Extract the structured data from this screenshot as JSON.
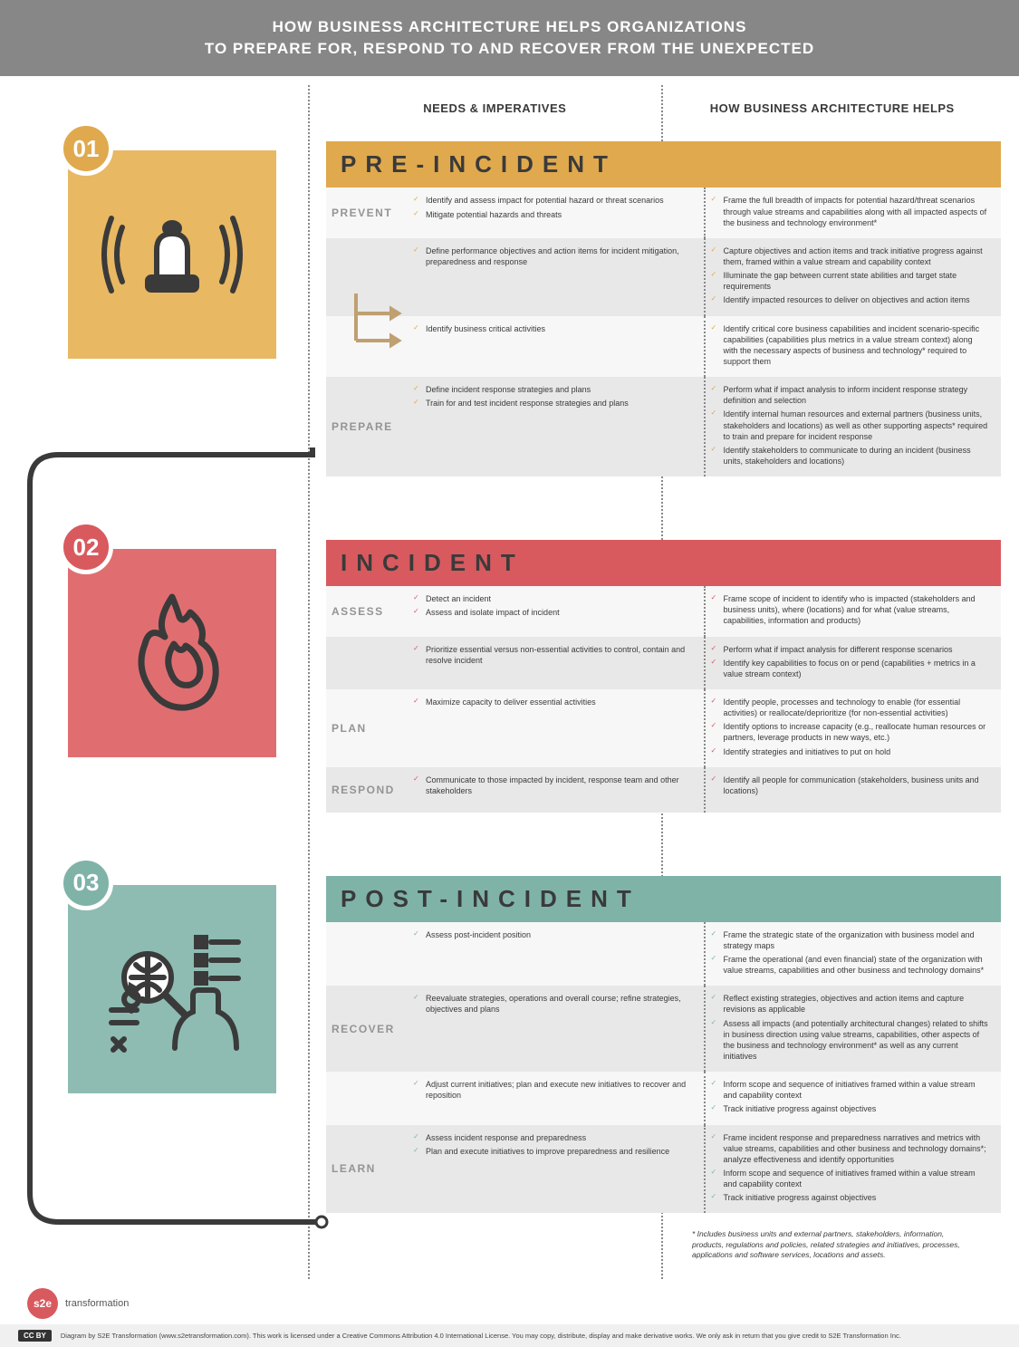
{
  "header": {
    "line1": "HOW BUSINESS ARCHITECTURE HELPS ORGANIZATIONS",
    "line2": "TO PREPARE FOR, RESPOND TO AND RECOVER FROM THE UNEXPECTED"
  },
  "columns": {
    "needs": "NEEDS & IMPERATIVES",
    "help": "HOW BUSINESS ARCHITECTURE HELPS"
  },
  "colors": {
    "header_bg": "#878787",
    "pre_accent": "#e0a94d",
    "pre_box": "#e8b863",
    "inc_accent": "#d85a5e",
    "inc_box": "#e06e71",
    "post_accent": "#7fb3a8",
    "post_box": "#8ebcb2",
    "row_alt": "#e8e8e8",
    "row_plain": "#f7f7f7",
    "phase_text": "#949494",
    "icon_stroke": "#3a3a3a"
  },
  "sections": [
    {
      "num": "01",
      "key": "pre",
      "title": "PRE-INCIDENT",
      "title_bg": "#e0a94d",
      "badge_bg": "#e0a94d",
      "box_bg": "#e8b863",
      "rows": [
        {
          "phase": "PREVENT",
          "alt": false,
          "needs": [
            "Identify and assess impact for potential hazard or threat scenarios",
            "Mitigate potential hazards and threats"
          ],
          "help": [
            "Frame the full breadth of impacts for potential hazard/threat scenarios through value streams and capabilities along with all impacted aspects of the business and technology environment*"
          ]
        },
        {
          "phase": "",
          "alt": true,
          "needs": [
            "Define performance objectives and action items for incident mitigation, preparedness and response"
          ],
          "help": [
            "Capture objectives and action items and track initiative progress against them, framed within a value stream and capability context",
            "Illuminate the gap between current state abilities and target state requirements",
            "Identify impacted resources to deliver on objectives and action items"
          ]
        },
        {
          "phase": "",
          "alt": false,
          "needs": [
            "Identify business critical activities"
          ],
          "help": [
            "Identify critical core business capabilities and incident scenario-specific capabilities (capabilities plus metrics in a value stream context) along with the necessary aspects of business and technology* required to support them"
          ]
        },
        {
          "phase": "PREPARE",
          "alt": true,
          "needs": [
            "Define incident response strategies and plans",
            "Train for and test incident response strategies and plans"
          ],
          "help": [
            "Perform what if impact analysis to inform incident response strategy definition and selection",
            "Identify internal human resources and external partners (business units, stakeholders and locations) as well as other supporting aspects* required to train and prepare for incident response",
            "Identify stakeholders to communicate to during an incident (business units, stakeholders and locations)"
          ]
        }
      ]
    },
    {
      "num": "02",
      "key": "inc",
      "title": "INCIDENT",
      "title_bg": "#d85a5e",
      "badge_bg": "#d85a5e",
      "box_bg": "#e06e71",
      "rows": [
        {
          "phase": "ASSESS",
          "alt": false,
          "needs": [
            "Detect an incident",
            "Assess and isolate impact of incident"
          ],
          "help": [
            "Frame scope of incident to identify who is impacted (stakeholders and business units), where (locations) and for what (value streams, capabilities, information and products)"
          ]
        },
        {
          "phase": "",
          "alt": true,
          "needs": [
            "Prioritize essential versus non-essential activities to control, contain and resolve incident"
          ],
          "help": [
            "Perform what if impact analysis for different response scenarios",
            "Identify key capabilities to focus on or pend (capabilities + metrics in a value stream context)"
          ]
        },
        {
          "phase": "PLAN",
          "alt": false,
          "needs": [
            "Maximize capacity to deliver essential activities"
          ],
          "help": [
            "Identify people, processes and technology to enable (for essential activities) or reallocate/deprioritize (for non-essential activities)",
            "Identify options to increase capacity (e.g., reallocate human resources or partners, leverage products in new ways, etc.)",
            "Identify strategies and initiatives to put on hold"
          ]
        },
        {
          "phase": "RESPOND",
          "alt": true,
          "needs": [
            "Communicate to those impacted by incident, response team and other stakeholders"
          ],
          "help": [
            "Identify all people for communication (stakeholders, business units and locations)"
          ]
        }
      ]
    },
    {
      "num": "03",
      "key": "post",
      "title": "POST-INCIDENT",
      "title_bg": "#7fb3a8",
      "badge_bg": "#7fb3a8",
      "box_bg": "#8ebcb2",
      "rows": [
        {
          "phase": "",
          "alt": false,
          "needs": [
            "Assess post-incident position"
          ],
          "help": [
            "Frame the strategic state of the organization with business model and strategy maps",
            "Frame the operational (and even financial) state of the organization with value streams, capabilities and other business and technology domains*"
          ]
        },
        {
          "phase": "RECOVER",
          "alt": true,
          "needs": [
            "Reevaluate strategies, operations and overall course; refine strategies, objectives and plans"
          ],
          "help": [
            "Reflect existing strategies, objectives and action items and capture revisions as applicable",
            "Assess all impacts (and potentially architectural changes) related to shifts in business direction using value streams, capabilities, other aspects of the business and technology environment* as well as any current initiatives"
          ]
        },
        {
          "phase": "",
          "alt": false,
          "needs": [
            "Adjust current initiatives; plan and execute new initiatives to recover and reposition"
          ],
          "help": [
            "Inform scope and sequence of initiatives framed within a value stream and capability context",
            "Track initiative progress against objectives"
          ]
        },
        {
          "phase": "LEARN",
          "alt": true,
          "needs": [
            "Assess incident response and preparedness",
            "Plan and execute initiatives to improve preparedness and resilience"
          ],
          "help": [
            "Frame incident response and preparedness narratives and metrics with value streams, capabilities and other business and technology domains*; analyze effectiveness and identify opportunities",
            "Inform scope and sequence of initiatives framed within a value stream and capability context",
            "Track initiative progress against objectives"
          ]
        }
      ]
    }
  ],
  "footnote": "* Includes business units and external partners, stakeholders, information, products, regulations and policies, related strategies and initiatives, processes, applications and software services, locations and assets.",
  "logo": {
    "badge": "s2e",
    "text": "transformation"
  },
  "license": {
    "badge": "CC BY",
    "text": "Diagram by S2E Transformation (www.s2etransformation.com). This work is licensed under a Creative Commons Attribution 4.0 International License. You may copy, distribute, display and make derivative works. We only ask in return that you give credit to S2E Transformation Inc."
  }
}
